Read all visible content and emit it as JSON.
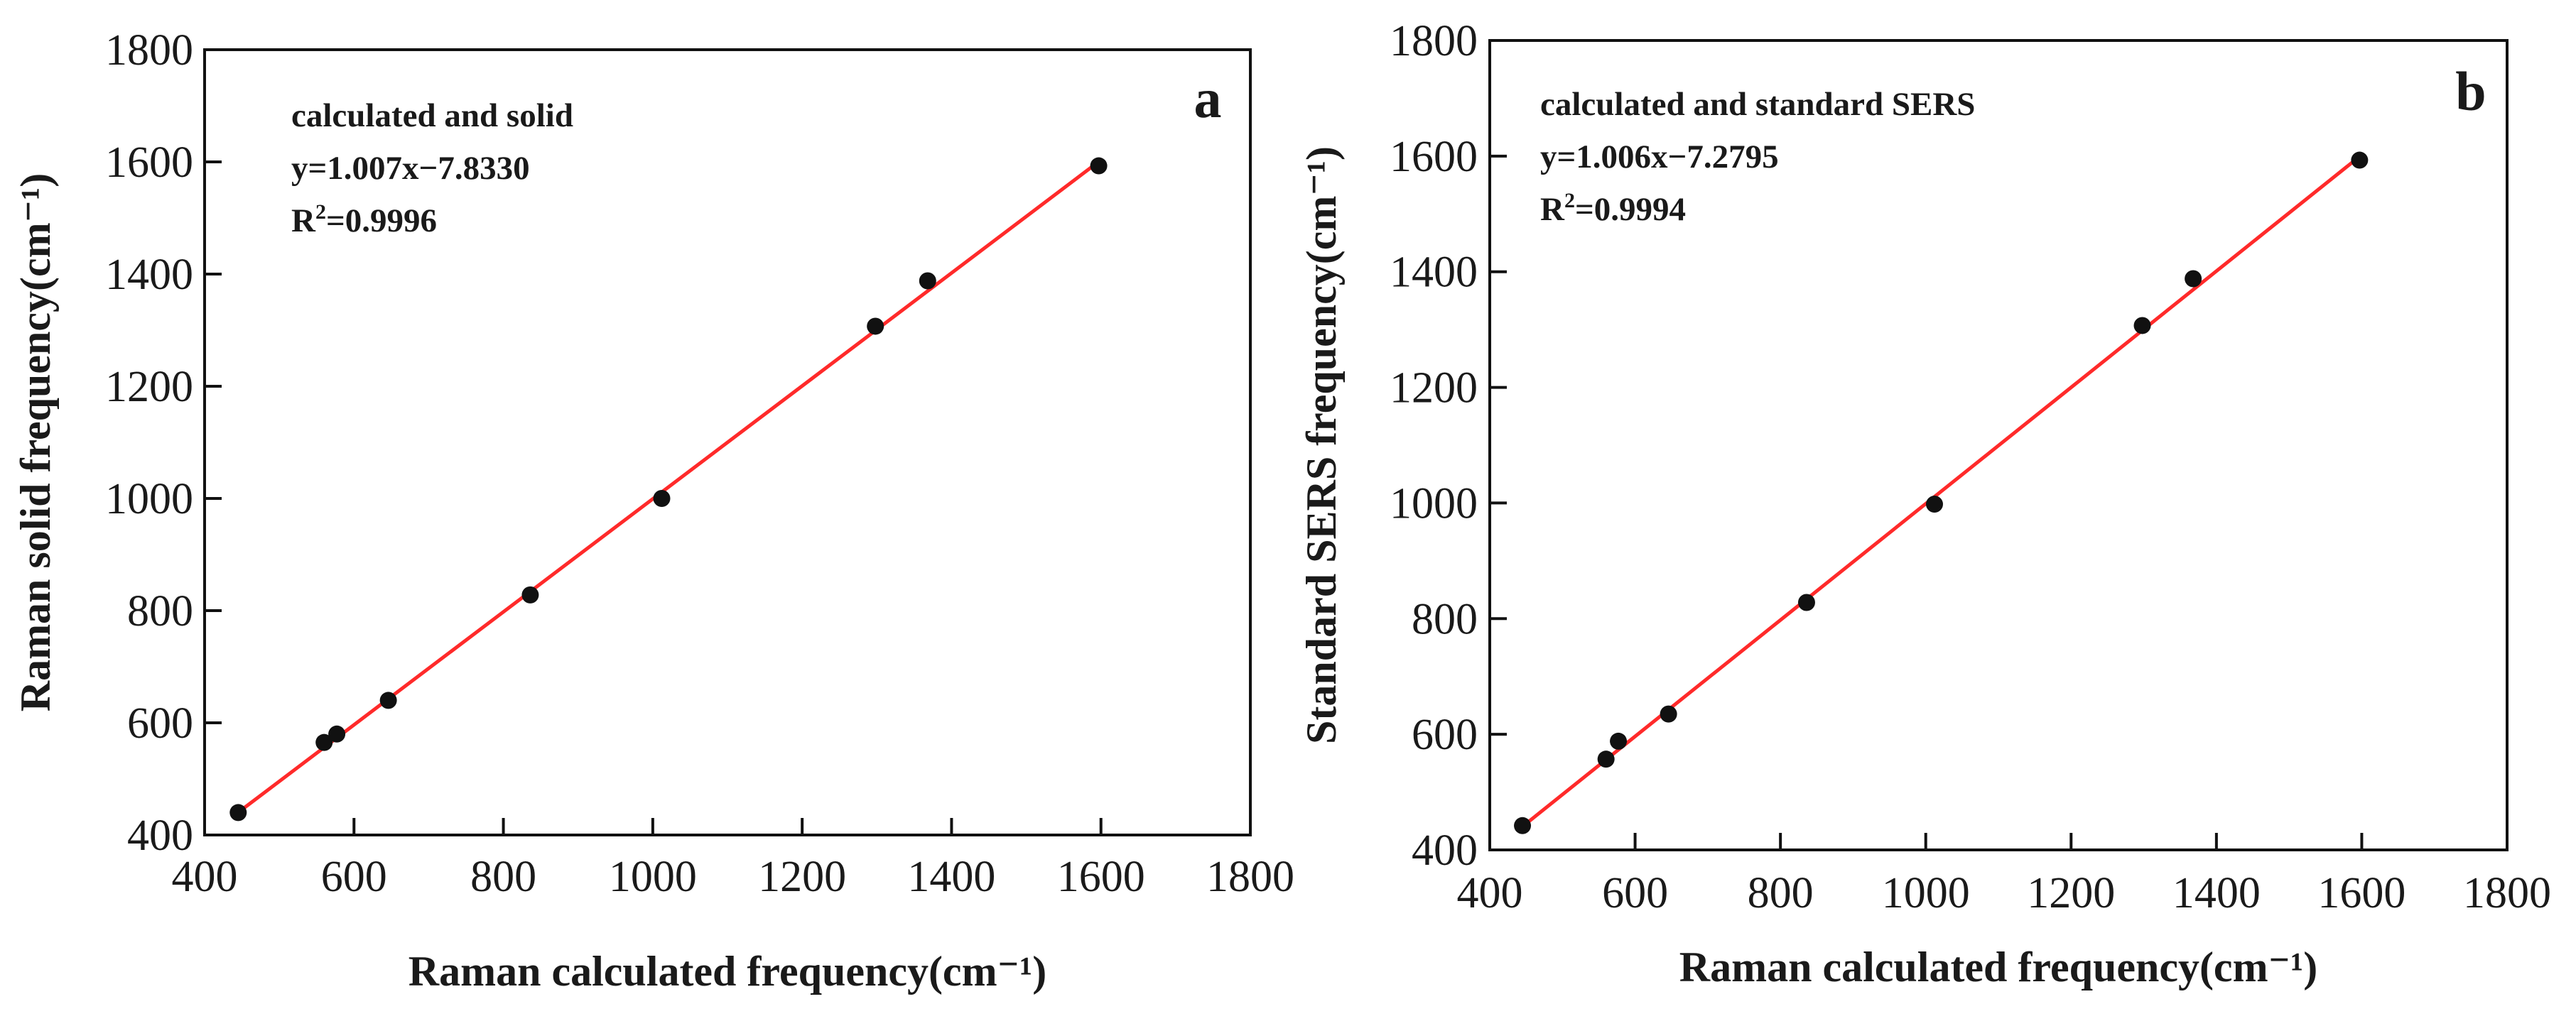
{
  "figure": {
    "description_colors": {
      "fit_line": "#ff2a2a",
      "points": "#111111",
      "axes": "#111111"
    }
  },
  "chart_data": [
    {
      "type": "scatter",
      "panel_label": "a",
      "xlabel": "Raman calculated frequency(cm⁻¹)",
      "ylabel": "Raman solid frequency(cm⁻¹)",
      "xlim": [
        400,
        1800
      ],
      "ylim": [
        400,
        1800
      ],
      "xticks": [
        "400",
        "600",
        "800",
        "1000",
        "1200",
        "1400",
        "1600",
        "1800"
      ],
      "yticks": [
        "400",
        "600",
        "800",
        "1000",
        "1200",
        "1400",
        "1600",
        "1800"
      ],
      "annotation": {
        "line1": "calculated and solid",
        "line2": "y=1.007x−7.8330",
        "line3_prefix": "R",
        "line3_sup": "2",
        "line3_rest": "=0.9996"
      },
      "fit": {
        "slope": 1.007,
        "intercept": -7.833,
        "x_range": [
          445,
          1597
        ]
      },
      "points": [
        {
          "x": 445,
          "y": 440
        },
        {
          "x": 560,
          "y": 565
        },
        {
          "x": 577,
          "y": 580
        },
        {
          "x": 646,
          "y": 640
        },
        {
          "x": 836,
          "y": 828
        },
        {
          "x": 1012,
          "y": 1000
        },
        {
          "x": 1298,
          "y": 1307
        },
        {
          "x": 1368,
          "y": 1388
        },
        {
          "x": 1597,
          "y": 1593
        }
      ]
    },
    {
      "type": "scatter",
      "panel_label": "b",
      "xlabel": "Raman calculated frequency(cm⁻¹)",
      "ylabel": "Standard SERS frequency(cm⁻¹)",
      "xlim": [
        400,
        1800
      ],
      "ylim": [
        400,
        1800
      ],
      "xticks": [
        "400",
        "600",
        "800",
        "1000",
        "1200",
        "1400",
        "1600",
        "1800"
      ],
      "yticks": [
        "400",
        "600",
        "800",
        "1000",
        "1200",
        "1400",
        "1600",
        "1800"
      ],
      "annotation": {
        "line1": "calculated and standard SERS",
        "line2": "y=1.006x−7.2795",
        "line3_prefix": "R",
        "line3_sup": "2",
        "line3_rest": "=0.9994"
      },
      "fit": {
        "slope": 1.006,
        "intercept": -7.2795,
        "x_range": [
          445,
          1597
        ]
      },
      "points": [
        {
          "x": 445,
          "y": 442
        },
        {
          "x": 560,
          "y": 557
        },
        {
          "x": 577,
          "y": 588
        },
        {
          "x": 646,
          "y": 635
        },
        {
          "x": 836,
          "y": 828
        },
        {
          "x": 1012,
          "y": 998
        },
        {
          "x": 1298,
          "y": 1307
        },
        {
          "x": 1368,
          "y": 1388
        },
        {
          "x": 1597,
          "y": 1593
        }
      ]
    }
  ]
}
